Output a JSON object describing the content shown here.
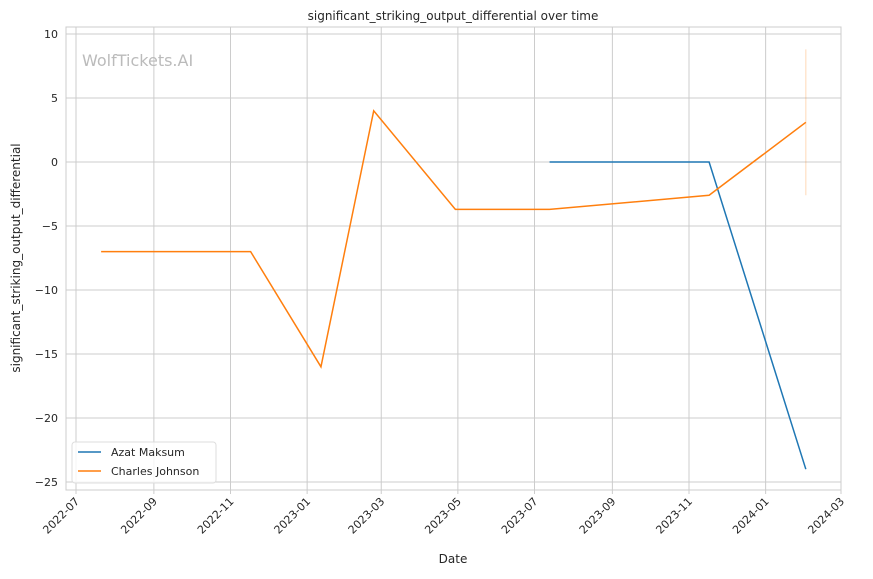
{
  "chart_data": {
    "type": "line",
    "title": "significant_striking_output_differential over time",
    "xlabel": "Date",
    "ylabel": "significant_striking_output_differential",
    "watermark": "WolfTickets.AI",
    "xlim": [
      "2022-06-25",
      "2024-03-01"
    ],
    "ylim": [
      -25.6,
      10.6
    ],
    "x_ticks": [
      "2022-07",
      "2022-09",
      "2022-11",
      "2023-01",
      "2023-03",
      "2023-05",
      "2023-07",
      "2023-09",
      "2023-11",
      "2024-01",
      "2024-03"
    ],
    "y_ticks": [
      10,
      5,
      0,
      -5,
      -10,
      -15,
      -20,
      -25
    ],
    "y_tick_labels": [
      "10",
      "5",
      "0",
      "−5",
      "−10",
      "−15",
      "−20",
      "−25"
    ],
    "grid": true,
    "legend_position": "lower-left",
    "series": [
      {
        "name": "Azat Maksum",
        "color": "#1f77b4",
        "x": [
          "2023-07-13",
          "2023-11-17",
          "2024-02-02"
        ],
        "y": [
          0,
          0,
          -24
        ]
      },
      {
        "name": "Charles Johnson",
        "color": "#ff7f0e",
        "x": [
          "2022-07-21",
          "2022-11-17",
          "2023-01-12",
          "2023-02-23",
          "2023-04-29",
          "2023-07-13",
          "2023-11-17",
          "2024-02-02"
        ],
        "y": [
          -7,
          -7,
          -16,
          4,
          -3.7,
          -3.7,
          -2.6,
          3.1
        ],
        "interval": {
          "x": "2024-02-02",
          "low": -2.6,
          "high": 8.8
        }
      }
    ]
  }
}
